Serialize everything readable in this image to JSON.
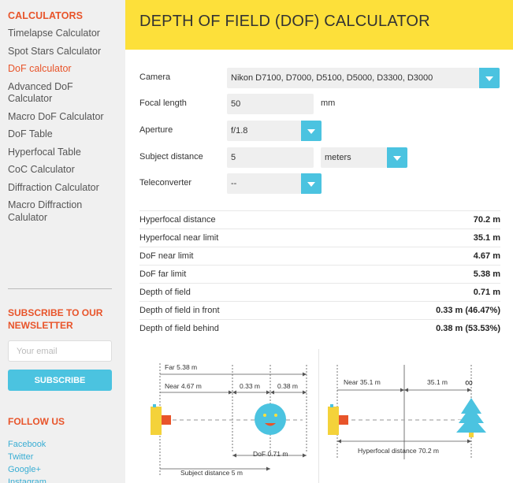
{
  "sidebar": {
    "heading": "CALCULATORS",
    "items": [
      {
        "label": "Timelapse Calculator",
        "active": false
      },
      {
        "label": "Spot Stars Calculator",
        "active": false
      },
      {
        "label": "DoF calculator",
        "active": true
      },
      {
        "label": "Advanced DoF Calculator",
        "active": false
      },
      {
        "label": "Macro DoF Calculator",
        "active": false
      },
      {
        "label": "DoF Table",
        "active": false
      },
      {
        "label": "Hyperfocal Table",
        "active": false
      },
      {
        "label": "CoC Calculator",
        "active": false
      },
      {
        "label": "Diffraction Calculator",
        "active": false
      },
      {
        "label": "Macro Diffraction Calulator",
        "active": false
      }
    ],
    "subscribe_heading": "SUBSCRIBE TO OUR NEWSLETTER",
    "email_placeholder": "Your email",
    "subscribe_button": "SUBSCRIBE",
    "follow_heading": "FOLLOW US",
    "follow_links": [
      "Facebook",
      "Twitter",
      "Google+",
      "Instagram"
    ]
  },
  "main": {
    "title": "DEPTH OF FIELD (DOF) CALCULATOR",
    "form": {
      "camera_label": "Camera",
      "camera_value": "Nikon D7100, D7000, D5100, D5000, D3300, D3000",
      "focal_label": "Focal length",
      "focal_value": "50",
      "focal_unit": "mm",
      "aperture_label": "Aperture",
      "aperture_value": "f/1.8",
      "subject_label": "Subject distance",
      "subject_value": "5",
      "subject_unit": "meters",
      "tele_label": "Teleconverter",
      "tele_value": "--"
    },
    "results": [
      {
        "label": "Hyperfocal distance",
        "value": "70.2 m"
      },
      {
        "label": "Hyperfocal near limit",
        "value": "35.1 m"
      },
      {
        "label": "DoF near limit",
        "value": "4.67 m"
      },
      {
        "label": "DoF far limit",
        "value": "5.38 m"
      },
      {
        "label": "Depth of field",
        "value": "0.71 m"
      },
      {
        "label": "Depth of field in front",
        "value": "0.33 m (46.47%)"
      },
      {
        "label": "Depth of field behind",
        "value": "0.38 m (53.53%)"
      }
    ],
    "diagram_left": {
      "far_label": "Far",
      "far_value": "5.38 m",
      "near_label": "Near",
      "near_value": "4.67 m",
      "front_value": "0.33 m",
      "behind_value": "0.38 m",
      "dof_label": "DoF",
      "dof_value": "0.71 m",
      "subject_label": "Subject distance",
      "subject_value": "5 m"
    },
    "diagram_right": {
      "near_label": "Near",
      "near_value": "35.1 m",
      "mid_value": "35.1 m",
      "infinity": "∞",
      "hyper_label": "Hyperfocal distance",
      "hyper_value": "70.2 m"
    }
  },
  "colors": {
    "accent": "#e8542a",
    "title_bar": "#fde03a",
    "button": "#4bc3e0",
    "link": "#3aaed4"
  }
}
